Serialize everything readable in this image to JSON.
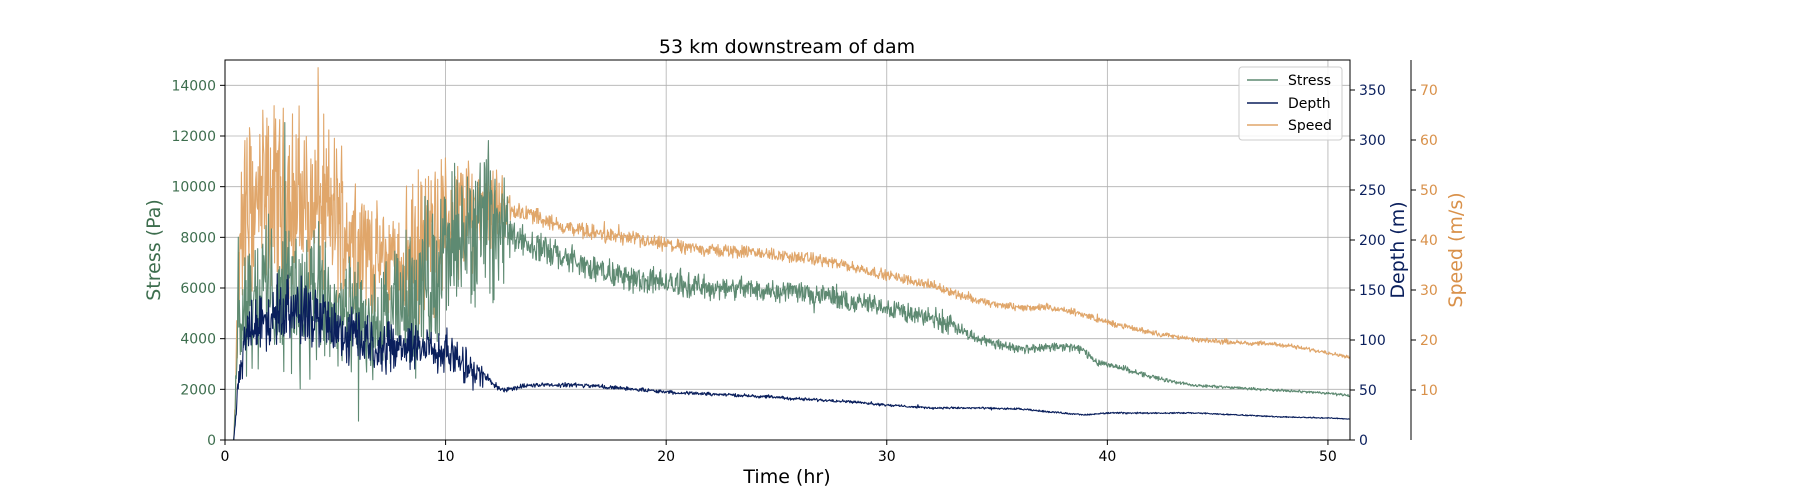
{
  "chart_data": {
    "type": "line",
    "title": "53 km downstream of dam",
    "xlabel": "Time (hr)",
    "xlim": [
      0,
      51
    ],
    "xticks": [
      0,
      10,
      20,
      30,
      40,
      50
    ],
    "grid": true,
    "legend_placement": "top-right",
    "axes": [
      {
        "id": "stress",
        "side": "left",
        "label": "Stress (Pa)",
        "color": "#3d6e4e",
        "ylim": [
          0,
          15000
        ],
        "ticks": [
          0,
          2000,
          4000,
          6000,
          8000,
          10000,
          12000,
          14000
        ]
      },
      {
        "id": "depth",
        "side": "right",
        "label": "Depth (m)",
        "color": "#0a1f5c",
        "ylim": [
          0,
          380
        ],
        "ticks": [
          0,
          50,
          100,
          150,
          200,
          250,
          300,
          350
        ]
      },
      {
        "id": "speed",
        "side": "right-outer",
        "label": "Speed (m/s)",
        "color": "#d9914a",
        "ylim": [
          0,
          76
        ],
        "ticks": [
          10,
          20,
          30,
          40,
          50,
          60,
          70
        ]
      }
    ],
    "series": [
      {
        "name": "Stress",
        "axis": "stress",
        "color": "#5e8a72",
        "noise_profile": [
          [
            0,
            0.1
          ],
          [
            0.6,
            0.3
          ],
          [
            3,
            0.42
          ],
          [
            9,
            0.38
          ],
          [
            12.5,
            0.22
          ],
          [
            13,
            0.06
          ],
          [
            33,
            0.06
          ],
          [
            34,
            0.04
          ],
          [
            40,
            0.035
          ],
          [
            44,
            0.02
          ],
          [
            51,
            0.02
          ]
        ],
        "x": [
          0,
          0.4,
          0.6,
          1,
          2,
          3,
          4,
          5,
          6,
          7,
          8,
          9,
          10,
          11,
          12,
          12.5,
          13,
          14,
          15,
          16,
          17,
          18,
          20,
          22,
          24,
          26,
          27,
          28,
          30,
          31,
          32,
          33,
          34,
          35,
          36,
          37,
          38,
          38.8,
          39.5,
          41,
          42,
          43,
          44,
          46,
          48,
          50,
          51
        ],
        "y": [
          0,
          0,
          5000,
          5500,
          6000,
          5800,
          5500,
          5000,
          4600,
          4300,
          5200,
          6200,
          7200,
          7800,
          8600,
          8500,
          8200,
          7700,
          7300,
          7000,
          6700,
          6450,
          6200,
          6000,
          5950,
          5900,
          5700,
          5500,
          5250,
          5000,
          4800,
          4500,
          4050,
          3800,
          3600,
          3650,
          3700,
          3600,
          3100,
          2750,
          2500,
          2300,
          2150,
          2050,
          1950,
          1850,
          1750
        ]
      },
      {
        "name": "Depth",
        "axis": "depth",
        "color": "#0a1f5c",
        "noise_profile": [
          [
            0,
            0.05
          ],
          [
            0.6,
            0.18
          ],
          [
            6,
            0.22
          ],
          [
            11.5,
            0.18
          ],
          [
            12,
            0.05
          ],
          [
            14,
            0.03
          ],
          [
            34,
            0.025
          ],
          [
            51,
            0.015
          ]
        ],
        "x": [
          0,
          0.4,
          0.6,
          1,
          2,
          3,
          4,
          5,
          6,
          7,
          8,
          9,
          10,
          11,
          12,
          12.5,
          14,
          16,
          18,
          20,
          22,
          24,
          26,
          28,
          30,
          32,
          34,
          36,
          38,
          39,
          40,
          42,
          44,
          46,
          48,
          50,
          51
        ],
        "y": [
          0,
          0,
          55,
          110,
          125,
          130,
          120,
          110,
          105,
          95,
          95,
          95,
          88,
          72,
          60,
          50,
          55,
          55,
          52,
          48,
          46,
          44,
          41,
          39,
          35,
          32,
          32,
          31,
          27,
          25,
          27,
          27,
          27,
          25,
          23,
          22,
          21
        ]
      },
      {
        "name": "Speed",
        "axis": "speed",
        "color": "#e0a66a",
        "noise_profile": [
          [
            0,
            0.05
          ],
          [
            0.5,
            0.3
          ],
          [
            6,
            0.28
          ],
          [
            7,
            0.2
          ],
          [
            8.5,
            0.3
          ],
          [
            12.5,
            0.12
          ],
          [
            13,
            0.03
          ],
          [
            51,
            0.015
          ]
        ],
        "x": [
          0,
          0.4,
          0.7,
          1,
          2,
          3,
          4,
          5,
          6,
          7,
          8,
          9,
          10,
          11,
          12,
          13,
          14,
          15,
          16,
          18,
          20,
          22,
          24,
          26,
          27,
          28,
          30,
          31,
          32,
          33,
          34,
          35,
          36,
          37,
          38,
          39,
          40,
          42,
          44,
          46,
          48,
          50,
          51
        ],
        "y": [
          0,
          0,
          43,
          46,
          48,
          48,
          47,
          45,
          40,
          36,
          35,
          39,
          44,
          46,
          47,
          46,
          45,
          43,
          42,
          40.5,
          39,
          38,
          37.5,
          36.5,
          36,
          35,
          33,
          32,
          31,
          29.5,
          28,
          27,
          26.5,
          26.5,
          26,
          25,
          23.5,
          21.5,
          20,
          19.5,
          19,
          17.5,
          16.5
        ]
      }
    ]
  }
}
